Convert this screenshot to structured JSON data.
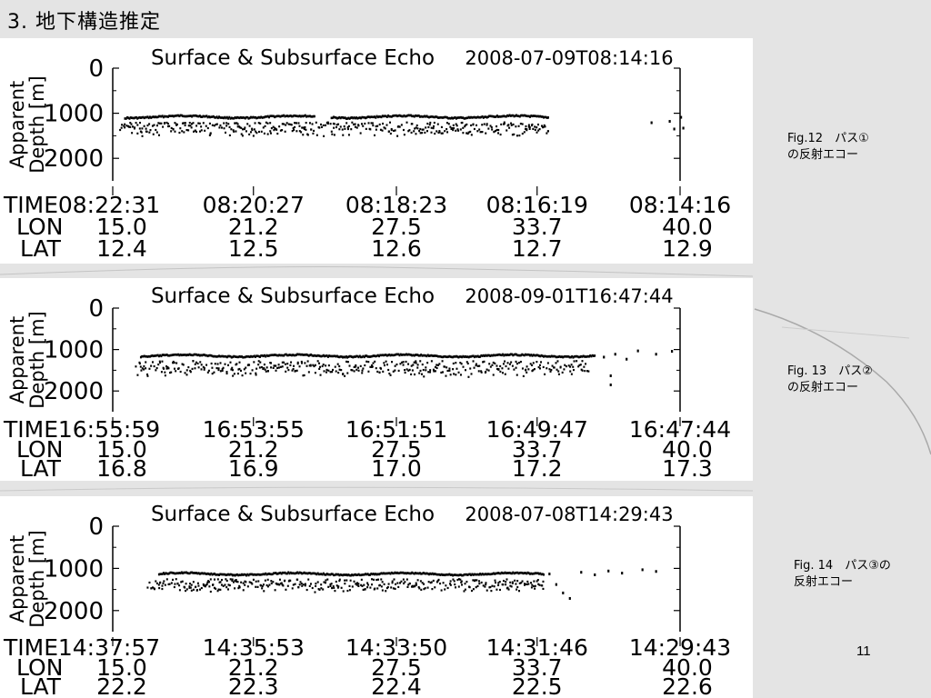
{
  "slide": {
    "title": "3. 地下構造推定",
    "page_number": "11"
  },
  "captions": [
    {
      "line1": "Fig.12　パス①",
      "line2": "の反射エコー"
    },
    {
      "line1": "Fig. 13　パス②",
      "line2": "の反射エコー"
    },
    {
      "line1": "Fig. 14　パス③の",
      "line2": "反射エコー"
    }
  ],
  "colors": {
    "ink": "#000000",
    "panel": "#ffffff",
    "background": "#e4e4e4"
  },
  "chart_data": [
    {
      "type": "scatter",
      "title": "Surface & Subsurface Echo",
      "timestamp": "2008-07-09T08:14:16",
      "ylabel": [
        "Apparent",
        "Depth [m]"
      ],
      "ylim": [
        0,
        2500
      ],
      "y_inverted": true,
      "yticks": [
        "0",
        "1000",
        "2000"
      ],
      "row_labels": [
        "TIME",
        "LON",
        "LAT"
      ],
      "time": [
        "08:22:31",
        "08:20:27",
        "08:18:23",
        "08:16:19",
        "08:14:16"
      ],
      "lon": [
        "15.0",
        "21.2",
        "27.5",
        "33.7",
        "40.0"
      ],
      "lat": [
        "12.4",
        "12.5",
        "12.6",
        "12.7",
        "12.9"
      ],
      "surface_echo": {
        "x_range": [
          15.5,
          34.2
        ],
        "depth": 1080,
        "gaps": [
          [
            23.9,
            24.6
          ]
        ]
      },
      "subsurface_echo": {
        "x_range": [
          15.3,
          34.2
        ],
        "depth_range": [
          1180,
          1500
        ]
      },
      "isolated_echoes": [
        [
          38.7,
          1180
        ],
        [
          39.5,
          1150
        ],
        [
          39.7,
          1320
        ],
        [
          40.0,
          1060
        ],
        [
          40.1,
          1300
        ]
      ]
    },
    {
      "type": "scatter",
      "title": "Surface & Subsurface Echo",
      "timestamp": "2008-09-01T16:47:44",
      "ylabel": [
        "Apparent",
        "Depth [m]"
      ],
      "ylim": [
        0,
        2500
      ],
      "y_inverted": true,
      "yticks": [
        "0",
        "1000",
        "2000"
      ],
      "row_labels": [
        "TIME",
        "LON",
        "LAT"
      ],
      "time": [
        "16:55:59",
        "16:53:55",
        "16:51:51",
        "16:49:47",
        "16:47:44"
      ],
      "lon": [
        "15.0",
        "21.2",
        "27.5",
        "33.7",
        "40.0"
      ],
      "lat": [
        "16.8",
        "16.9",
        "17.0",
        "17.2",
        "17.3"
      ],
      "surface_echo": {
        "x_range": [
          16.2,
          36.2
        ],
        "depth": 1150,
        "gaps": []
      },
      "subsurface_echo": {
        "x_range": [
          16.0,
          36.0
        ],
        "depth_range": [
          1250,
          1650
        ]
      },
      "isolated_echoes": [
        [
          36.6,
          1150
        ],
        [
          37.1,
          1080
        ],
        [
          37.6,
          1200
        ],
        [
          38.1,
          1000
        ],
        [
          38.9,
          1080
        ],
        [
          39.6,
          1010
        ],
        [
          36.9,
          1600
        ],
        [
          36.9,
          1820
        ]
      ]
    },
    {
      "type": "scatter",
      "title": "Surface & Subsurface Echo",
      "timestamp": "2008-07-08T14:29:43",
      "ylabel": [
        "Apparent",
        "Depth [m]"
      ],
      "ylim": [
        0,
        2500
      ],
      "y_inverted": true,
      "yticks": [
        "0",
        "1000",
        "2000"
      ],
      "row_labels": [
        "TIME",
        "LON",
        "LAT"
      ],
      "time": [
        "14:37:57",
        "14:35:53",
        "14:33:50",
        "14:31:46",
        "14:29:43"
      ],
      "lon": [
        "15.0",
        "21.2",
        "27.5",
        "33.7",
        "40.0"
      ],
      "lat": [
        "22.2",
        "22.3",
        "22.4",
        "22.5",
        "22.6"
      ],
      "surface_echo": {
        "x_range": [
          17.0,
          34.0
        ],
        "depth": 1130,
        "gaps": []
      },
      "subsurface_echo": {
        "x_range": [
          16.5,
          34.0
        ],
        "depth_range": [
          1230,
          1560
        ]
      },
      "isolated_echoes": [
        [
          34.2,
          1100
        ],
        [
          34.5,
          1350
        ],
        [
          34.8,
          1550
        ],
        [
          35.1,
          1680
        ],
        [
          35.6,
          1060
        ],
        [
          36.2,
          1120
        ],
        [
          36.8,
          1030
        ],
        [
          37.4,
          1080
        ],
        [
          38.3,
          1000
        ],
        [
          38.9,
          1040
        ]
      ]
    }
  ]
}
